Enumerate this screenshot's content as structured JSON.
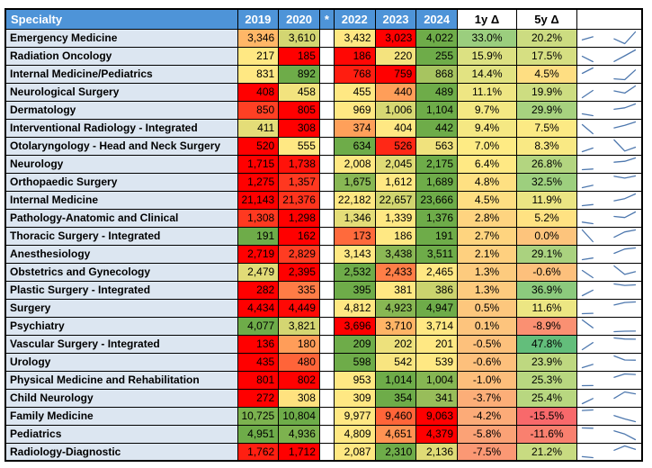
{
  "table": {
    "columns": [
      "Specialty",
      "2019",
      "2020",
      "*",
      "2022",
      "2023",
      "2024",
      "1y Δ",
      "5y Δ",
      ""
    ],
    "rows": [
      {
        "specialty": "Emergency Medicine",
        "values": [
          "3,346",
          "3,610",
          "3,432",
          "3,023",
          "4,022"
        ],
        "delta_1y": "33.0%",
        "delta_5y": "20.2%"
      },
      {
        "specialty": "Radiation Oncology",
        "values": [
          "217",
          "185",
          "186",
          "220",
          "255"
        ],
        "delta_1y": "15.9%",
        "delta_5y": "17.5%"
      },
      {
        "specialty": "Internal Medicine/Pediatrics",
        "values": [
          "831",
          "892",
          "768",
          "759",
          "868"
        ],
        "delta_1y": "14.4%",
        "delta_5y": "4.5%"
      },
      {
        "specialty": "Neurological Surgery",
        "values": [
          "408",
          "458",
          "455",
          "440",
          "489"
        ],
        "delta_1y": "11.1%",
        "delta_5y": "19.9%"
      },
      {
        "specialty": "Dermatology",
        "values": [
          "850",
          "805",
          "969",
          "1,006",
          "1,104"
        ],
        "delta_1y": "9.7%",
        "delta_5y": "29.9%"
      },
      {
        "specialty": "Interventional Radiology - Integrated",
        "values": [
          "411",
          "308",
          "374",
          "404",
          "442"
        ],
        "delta_1y": "9.4%",
        "delta_5y": "7.5%"
      },
      {
        "specialty": "Otolaryngology - Head and Neck Surgery",
        "values": [
          "520",
          "555",
          "634",
          "526",
          "563"
        ],
        "delta_1y": "7.0%",
        "delta_5y": "8.3%"
      },
      {
        "specialty": "Neurology",
        "values": [
          "1,715",
          "1,738",
          "2,008",
          "2,045",
          "2,175"
        ],
        "delta_1y": "6.4%",
        "delta_5y": "26.8%"
      },
      {
        "specialty": "Orthopaedic Surgery",
        "values": [
          "1,275",
          "1,357",
          "1,675",
          "1,612",
          "1,689"
        ],
        "delta_1y": "4.8%",
        "delta_5y": "32.5%"
      },
      {
        "specialty": "Internal Medicine",
        "values": [
          "21,143",
          "21,376",
          "22,182",
          "22,657",
          "23,666"
        ],
        "delta_1y": "4.5%",
        "delta_5y": "11.9%"
      },
      {
        "specialty": "Pathology-Anatomic and Clinical",
        "values": [
          "1,308",
          "1,298",
          "1,346",
          "1,339",
          "1,376"
        ],
        "delta_1y": "2.8%",
        "delta_5y": "5.2%"
      },
      {
        "specialty": "Thoracic Surgery - Integrated",
        "values": [
          "191",
          "162",
          "173",
          "186",
          "191"
        ],
        "delta_1y": "2.7%",
        "delta_5y": "0.0%"
      },
      {
        "specialty": "Anesthesiology",
        "values": [
          "2,719",
          "2,829",
          "3,143",
          "3,438",
          "3,511"
        ],
        "delta_1y": "2.1%",
        "delta_5y": "29.1%"
      },
      {
        "specialty": "Obstetrics and Gynecology",
        "values": [
          "2,479",
          "2,395",
          "2,532",
          "2,433",
          "2,465"
        ],
        "delta_1y": "1.3%",
        "delta_5y": "-0.6%"
      },
      {
        "specialty": "Plastic Surgery - Integrated",
        "values": [
          "282",
          "335",
          "395",
          "381",
          "386"
        ],
        "delta_1y": "1.3%",
        "delta_5y": "36.9%"
      },
      {
        "specialty": "Surgery",
        "values": [
          "4,434",
          "4,449",
          "4,812",
          "4,923",
          "4,947"
        ],
        "delta_1y": "0.5%",
        "delta_5y": "11.6%"
      },
      {
        "specialty": "Psychiatry",
        "values": [
          "4,077",
          "3,821",
          "3,696",
          "3,710",
          "3,714"
        ],
        "delta_1y": "0.1%",
        "delta_5y": "-8.9%"
      },
      {
        "specialty": "Vascular Surgery - Integrated",
        "values": [
          "136",
          "180",
          "209",
          "202",
          "201"
        ],
        "delta_1y": "-0.5%",
        "delta_5y": "47.8%"
      },
      {
        "specialty": "Urology",
        "values": [
          "435",
          "480",
          "598",
          "542",
          "539"
        ],
        "delta_1y": "-0.6%",
        "delta_5y": "23.9%"
      },
      {
        "specialty": "Physical Medicine and Rehabilitation",
        "values": [
          "801",
          "802",
          "953",
          "1,014",
          "1,004"
        ],
        "delta_1y": "-1.0%",
        "delta_5y": "25.3%"
      },
      {
        "specialty": "Child Neurology",
        "values": [
          "272",
          "308",
          "309",
          "354",
          "341"
        ],
        "delta_1y": "-3.7%",
        "delta_5y": "25.4%"
      },
      {
        "specialty": "Family Medicine",
        "values": [
          "10,725",
          "10,804",
          "9,977",
          "9,460",
          "9,063"
        ],
        "delta_1y": "-4.2%",
        "delta_5y": "-15.5%"
      },
      {
        "specialty": "Pediatrics",
        "values": [
          "4,951",
          "4,936",
          "4,809",
          "4,651",
          "4,379"
        ],
        "delta_1y": "-5.8%",
        "delta_5y": "-11.6%"
      },
      {
        "specialty": "Radiology-Diagnostic",
        "values": [
          "1,762",
          "1,712",
          "2,087",
          "2,310",
          "2,136"
        ],
        "delta_1y": "-7.5%",
        "delta_5y": "21.2%"
      }
    ]
  },
  "chart_data": {
    "type": "line",
    "note": "per-row sparklines: years 2019,2020,(2021 gap),2022,2023,2024 drawn as two segments",
    "x": [
      2019,
      2020,
      2022,
      2023,
      2024
    ],
    "series_source": "table.rows[].values"
  },
  "palette": {
    "header_bg": "#4E94D8",
    "header_text": "#FFFFFF",
    "specialty_bg": "#DCE6F1",
    "grid_border": "#000000",
    "sparkline": "#4E78AE",
    "year_scale": {
      "min": "#FF0000",
      "mid": "#FFE883",
      "max": "#6EAC49"
    },
    "delta_scale": {
      "min": "#F8696B",
      "mid": "#FFEB84",
      "max": "#63BE7B"
    }
  }
}
